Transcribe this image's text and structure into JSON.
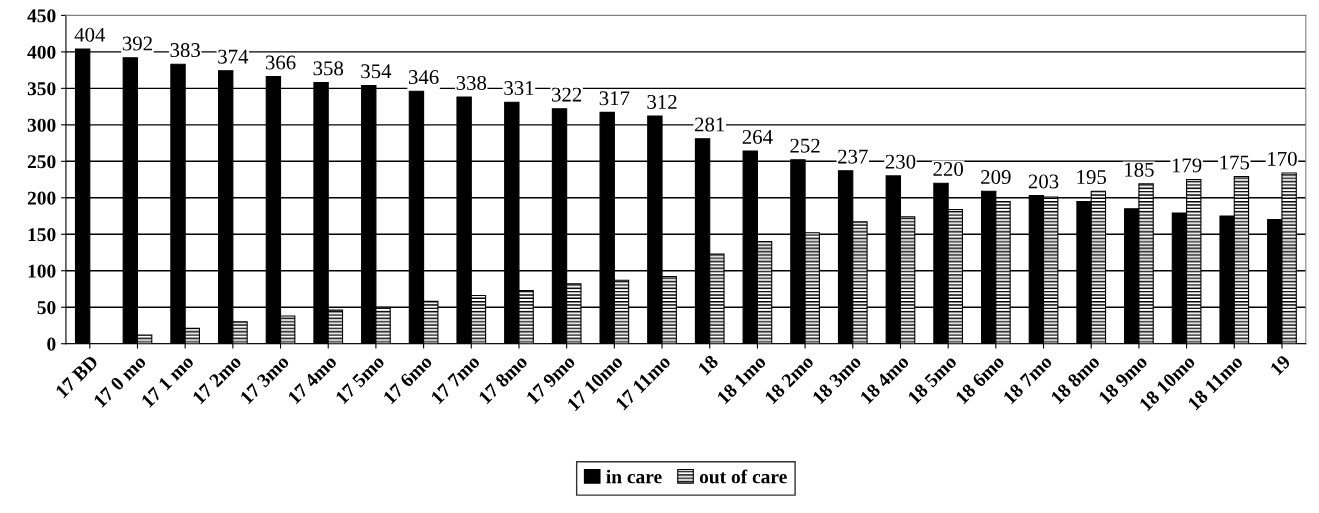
{
  "chart_data": {
    "type": "bar",
    "categories": [
      "17 BD",
      "17 0 mo",
      "17 1 mo",
      "17 2mo",
      "17 3mo",
      "17 4mo",
      "17 5mo",
      "17 6mo",
      "17 7mo",
      "17 8mo",
      "17 9mo",
      "17 10mo",
      "17 11mo",
      "18",
      "18 1mo",
      "18 2mo",
      "18 3mo",
      "18 4mo",
      "18 5mo",
      "18 6mo",
      "18 7mo",
      "18 8mo",
      "18 9mo",
      "18 10mo",
      "18 11mo",
      "19"
    ],
    "series": [
      {
        "name": "in care",
        "color": "#000000",
        "values": [
          404,
          392,
          383,
          374,
          366,
          358,
          354,
          346,
          338,
          331,
          322,
          317,
          312,
          281,
          264,
          252,
          237,
          230,
          220,
          209,
          203,
          195,
          185,
          179,
          175,
          170
        ],
        "value_labels": [
          "404",
          "392",
          "383",
          "374",
          "366",
          "358",
          "354",
          "346",
          "338",
          "331",
          "322",
          "317",
          "312",
          "281",
          "264",
          "252",
          "237",
          "230",
          "220",
          "209",
          "203",
          "195",
          "185",
          "179",
          "175",
          "170"
        ]
      },
      {
        "name": "out of care",
        "color": "#000000",
        "values": [
          null,
          12,
          21,
          30,
          38,
          46,
          50,
          58,
          66,
          73,
          82,
          87,
          92,
          123,
          140,
          152,
          167,
          174,
          184,
          195,
          201,
          209,
          219,
          225,
          229,
          234
        ]
      }
    ],
    "ylim": [
      0,
      450
    ],
    "yticks": [
      0,
      50,
      100,
      150,
      200,
      250,
      300,
      350,
      400,
      450
    ],
    "grid": "y",
    "legend": "bottom"
  }
}
